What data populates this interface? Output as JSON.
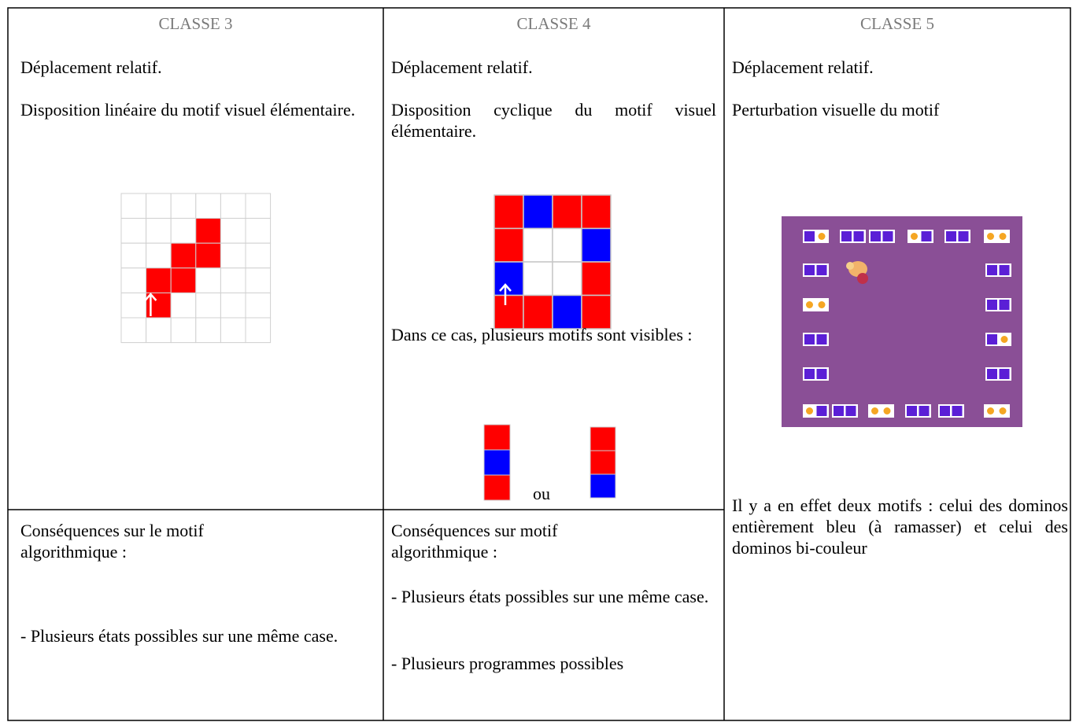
{
  "table": {
    "headers": [
      "CLASSE 3",
      "CLASSE 4",
      "CLASSE 5"
    ],
    "top_cells": [
      [
        "Déplacement relatif.",
        "Disposition linéaire du motif visuel élémentaire."
      ],
      [
        "Déplacement relatif.",
        "Disposition cyclique du motif visuel élémentaire.",
        "Dans ce cas, plusieurs motifs sont visibles :",
        "ou"
      ],
      [
        "Déplacement relatif.",
        "Perturbation visuelle du motif",
        "Il y a en effet deux motifs : celui des dominos entièrement bleu (à ramasser) et celui des dominos bi-couleur"
      ]
    ],
    "bottom_cells": [
      [
        "Conséquences sur le motif algorithmique :",
        "- Plusieurs états possibles sur une même case."
      ],
      [
        "Conséquences sur motif algorithmique :",
        "- Plusieurs états possibles sur une même case.",
        "- Plusieurs programmes possibles"
      ]
    ]
  }
}
